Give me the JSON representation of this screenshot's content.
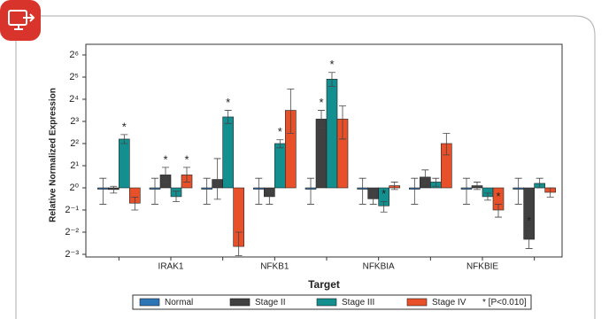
{
  "chart_data": {
    "type": "bar",
    "x_label": "Target",
    "y_label": "Relative Normalized Expression",
    "categories": [
      null,
      "IRAK1",
      null,
      "NFKB1",
      null,
      "NFKBIA",
      null,
      "NFKBIE",
      null
    ],
    "log_base": 2,
    "ylim": [
      0.125,
      64
    ],
    "yticks": [
      {
        "value": 0.125,
        "label": "2⁻³"
      },
      {
        "value": 0.25,
        "label": "2⁻²"
      },
      {
        "value": 0.5,
        "label": "2⁻¹"
      },
      {
        "value": 1,
        "label": "2⁰"
      },
      {
        "value": 2,
        "label": "2¹"
      },
      {
        "value": 4,
        "label": "2²"
      },
      {
        "value": 8,
        "label": "2³"
      },
      {
        "value": 16,
        "label": "2⁴"
      },
      {
        "value": 32,
        "label": "2⁵"
      },
      {
        "value": 64,
        "label": "2⁶"
      }
    ],
    "significance_mark": "*",
    "significance_note": "* [P<0.010]",
    "series": [
      {
        "name": "Normal",
        "color": "#2e75b6",
        "values": [
          1,
          1,
          1,
          1,
          1,
          1,
          1,
          1,
          1
        ],
        "err_low": [
          0.6,
          0.6,
          0.6,
          0.6,
          0.6,
          0.6,
          0.6,
          0.6,
          0.6
        ],
        "err_high": [
          1.35,
          1.35,
          1.35,
          1.35,
          1.35,
          1.35,
          1.35,
          1.35,
          1.35
        ],
        "significant": [
          false,
          false,
          false,
          false,
          false,
          false,
          false,
          false,
          false
        ]
      },
      {
        "name": "Stage II",
        "color": "#404040",
        "values": [
          0.95,
          1.5,
          1.3,
          0.76,
          8.6,
          0.71,
          1.4,
          1.07,
          0.2
        ],
        "err_low": [
          0.85,
          1.2,
          0.7,
          0.6,
          6.5,
          0.6,
          1.15,
          0.95,
          0.15
        ],
        "err_high": [
          1.05,
          1.9,
          2.5,
          0.9,
          11.3,
          0.85,
          1.75,
          1.2,
          0.28
        ],
        "significant": [
          false,
          true,
          false,
          false,
          true,
          false,
          false,
          false,
          true
        ]
      },
      {
        "name": "Stage III",
        "color": "#138f8f",
        "values": [
          4.6,
          0.76,
          9.2,
          4.0,
          30,
          0.57,
          1.2,
          0.76,
          1.15
        ],
        "err_low": [
          4.0,
          0.65,
          7.5,
          3.5,
          24,
          0.47,
          1.05,
          0.68,
          1
        ],
        "err_high": [
          5.3,
          0.9,
          11.3,
          4.5,
          37,
          0.65,
          1.35,
          0.85,
          1.35
        ],
        "significant": [
          true,
          false,
          true,
          true,
          true,
          true,
          false,
          false,
          false
        ]
      },
      {
        "name": "Stage IV",
        "color": "#e8502a",
        "values": [
          0.62,
          1.5,
          0.16,
          11.3,
          8.6,
          1.07,
          4.0,
          0.5,
          0.87
        ],
        "err_low": [
          0.5,
          1.2,
          0.12,
          5.5,
          4.6,
          0.95,
          2.8,
          0.4,
          0.75
        ],
        "err_high": [
          0.75,
          1.9,
          0.25,
          22,
          13,
          1.2,
          5.5,
          0.6,
          1
        ],
        "significant": [
          false,
          true,
          false,
          false,
          false,
          false,
          false,
          true,
          false
        ]
      }
    ]
  }
}
